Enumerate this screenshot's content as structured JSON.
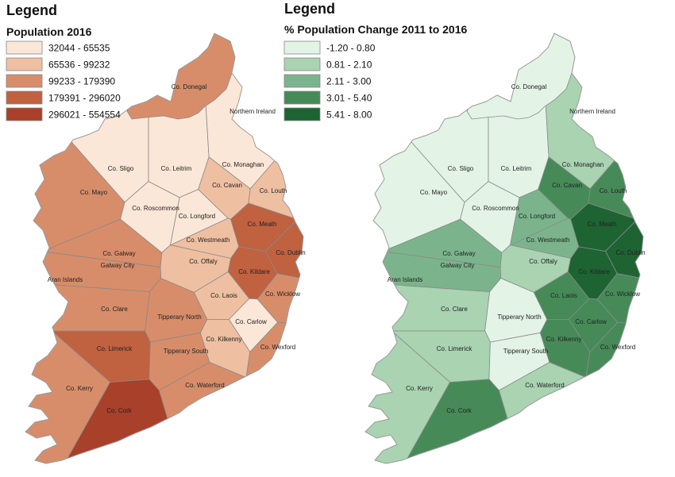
{
  "left_map": {
    "legend_title": "Legend",
    "legend_subtitle": "Population 2016",
    "classes": [
      {
        "label": "32044 - 65535",
        "color": "#fbe7d7"
      },
      {
        "label": "65536 - 99232",
        "color": "#efbfa2"
      },
      {
        "label": "99233 - 179390",
        "color": "#d88d6a"
      },
      {
        "label": "179391 - 296020",
        "color": "#c06140"
      },
      {
        "label": "296021 - 554554",
        "color": "#a8402a"
      }
    ],
    "counties": [
      {
        "name": "Co. Donegal",
        "class": 2
      },
      {
        "name": "Co. Sligo",
        "class": 0
      },
      {
        "name": "Co. Leitrim",
        "class": 0
      },
      {
        "name": "Co. Mayo",
        "class": 2
      },
      {
        "name": "Co. Roscommon",
        "class": 0
      },
      {
        "name": "Co. Longford",
        "class": 0
      },
      {
        "name": "Co. Cavan",
        "class": 1
      },
      {
        "name": "Co. Monaghan",
        "class": 0
      },
      {
        "name": "Co. Louth",
        "class": 1
      },
      {
        "name": "Co. Meath",
        "class": 3
      },
      {
        "name": "Co. Westmeath",
        "class": 1
      },
      {
        "name": "Co. Galway",
        "class": 2
      },
      {
        "name": "Galway City",
        "class": 2
      },
      {
        "name": "Co. Offaly",
        "class": 1
      },
      {
        "name": "Co. Dublin",
        "class": 3
      },
      {
        "name": "Co. Kildare",
        "class": 3
      },
      {
        "name": "Co. Laois",
        "class": 1
      },
      {
        "name": "Co. Wicklow",
        "class": 2
      },
      {
        "name": "Co. Clare",
        "class": 2
      },
      {
        "name": "Tipperary North",
        "class": 2
      },
      {
        "name": "Co. Carlow",
        "class": 0
      },
      {
        "name": "Co. Limerick",
        "class": 3
      },
      {
        "name": "Tipperary South",
        "class": 2
      },
      {
        "name": "Co. Kilkenny",
        "class": 1
      },
      {
        "name": "Co. Wexford",
        "class": 2
      },
      {
        "name": "Co. Kerry",
        "class": 2
      },
      {
        "name": "Co. Waterford",
        "class": 2
      },
      {
        "name": "Co. Cork",
        "class": 4
      }
    ],
    "other_labels": [
      "Northern Ireland",
      "Aran Islands"
    ]
  },
  "right_map": {
    "legend_title": "Legend",
    "legend_subtitle": "% Population Change 2011 to 2016",
    "classes": [
      {
        "label": "-1.20 - 0.80",
        "color": "#e3f4e6"
      },
      {
        "label": "0.81 - 2.10",
        "color": "#a9d3b1"
      },
      {
        "label": "2.11 - 3.00",
        "color": "#7bb48c"
      },
      {
        "label": "3.01 - 5.40",
        "color": "#468a58"
      },
      {
        "label": "5.41 - 8.00",
        "color": "#1e6332"
      }
    ],
    "counties": [
      {
        "name": "Co. Donegal",
        "class": 0
      },
      {
        "name": "Co. Sligo",
        "class": 0
      },
      {
        "name": "Co. Leitrim",
        "class": 0
      },
      {
        "name": "Co. Mayo",
        "class": 0
      },
      {
        "name": "Co. Roscommon",
        "class": 0
      },
      {
        "name": "Co. Longford",
        "class": 2
      },
      {
        "name": "Co. Cavan",
        "class": 3
      },
      {
        "name": "Co. Monaghan",
        "class": 1
      },
      {
        "name": "Co. Louth",
        "class": 3
      },
      {
        "name": "Co. Meath",
        "class": 4
      },
      {
        "name": "Co. Westmeath",
        "class": 2
      },
      {
        "name": "Co. Galway",
        "class": 2
      },
      {
        "name": "Galway City",
        "class": 2
      },
      {
        "name": "Co. Offaly",
        "class": 1
      },
      {
        "name": "Co. Dublin",
        "class": 4
      },
      {
        "name": "Co. Kildare",
        "class": 4
      },
      {
        "name": "Co. Laois",
        "class": 3
      },
      {
        "name": "Co. Wicklow",
        "class": 3
      },
      {
        "name": "Co. Clare",
        "class": 1
      },
      {
        "name": "Tipperary North",
        "class": 0
      },
      {
        "name": "Co. Carlow",
        "class": 3
      },
      {
        "name": "Co. Limerick",
        "class": 1
      },
      {
        "name": "Tipperary South",
        "class": 0
      },
      {
        "name": "Co. Kilkenny",
        "class": 3
      },
      {
        "name": "Co. Wexford",
        "class": 3
      },
      {
        "name": "Co. Kerry",
        "class": 1
      },
      {
        "name": "Co. Waterford",
        "class": 1
      },
      {
        "name": "Co. Cork",
        "class": 3
      }
    ],
    "other_labels": [
      "Northern Ireland",
      "Aran Islands"
    ]
  }
}
